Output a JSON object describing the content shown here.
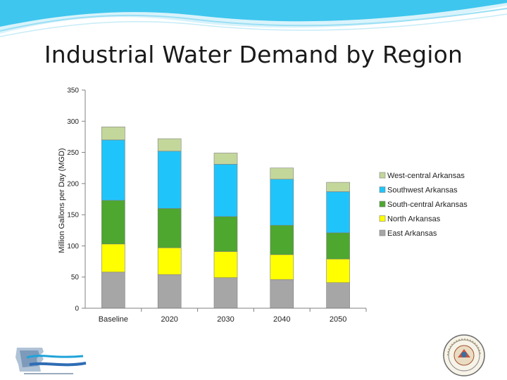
{
  "slide": {
    "title": "Industrial Water Demand by Region",
    "logo_text": "Arkansas waterplan"
  },
  "colors": {
    "header_blue": "#3ec6ee",
    "header_light": "#d9f3fb",
    "axis": "#808080"
  },
  "chart_data": {
    "type": "bar",
    "stacked": true,
    "title": "",
    "xlabel": "",
    "ylabel": "Million Gallons per Day (MGD)",
    "ylim": [
      0,
      350
    ],
    "yticks": [
      0,
      50,
      100,
      150,
      200,
      250,
      300,
      350
    ],
    "grid": false,
    "legend_position": "right",
    "categories": [
      "Baseline",
      "2020",
      "2030",
      "2040",
      "2050"
    ],
    "series": [
      {
        "name": "East Arkansas",
        "color": "#a6a6a6",
        "values": [
          58,
          54,
          49,
          46,
          41
        ]
      },
      {
        "name": "North Arkansas",
        "color": "#ffff00",
        "values": [
          45,
          43,
          42,
          40,
          38
        ]
      },
      {
        "name": "South-central Arkansas",
        "color": "#4ea72e",
        "values": [
          70,
          63,
          56,
          47,
          42
        ]
      },
      {
        "name": "Southwest Arkansas",
        "color": "#1fc5fa",
        "values": [
          97,
          92,
          84,
          74,
          66
        ]
      },
      {
        "name": "West-central Arkansas",
        "color": "#c4d79b",
        "values": [
          21,
          20,
          18,
          18,
          15
        ]
      }
    ]
  }
}
